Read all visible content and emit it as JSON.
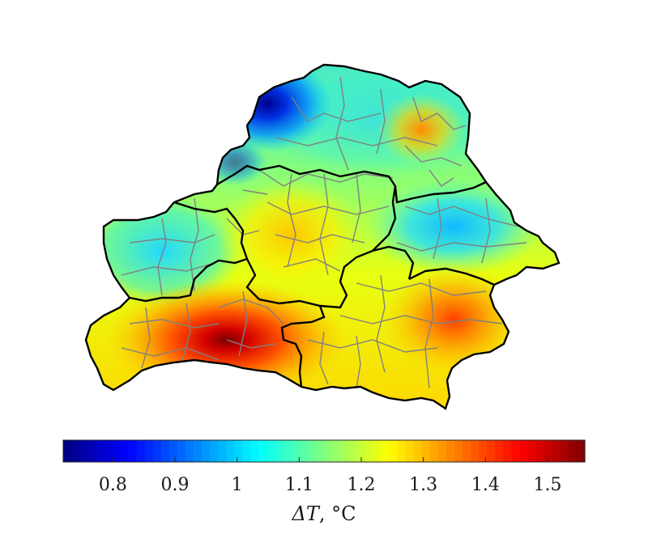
{
  "map": {
    "description_none": "",
    "colorbar": {
      "colormap": "jet",
      "range": [
        0.72,
        1.56
      ],
      "ticks": [
        "0.8",
        "0.9",
        "1",
        "1.1",
        "1.2",
        "1.3",
        "1.4",
        "1.5"
      ],
      "tick_values": [
        0.8,
        0.9,
        1.0,
        1.1,
        1.2,
        1.3,
        1.4,
        1.5
      ],
      "label_symbol": "ΔT",
      "label_unit": ", °C"
    },
    "colors": {
      "oblast_border": "#000000",
      "district_border": "#808080"
    },
    "hotspots": [
      {
        "name": "southwest-max",
        "value": 1.55
      },
      {
        "name": "southeast-high",
        "value": 1.38
      },
      {
        "name": "northeast-high",
        "value": 1.3
      },
      {
        "name": "northwest-min",
        "value": 0.74
      }
    ]
  }
}
